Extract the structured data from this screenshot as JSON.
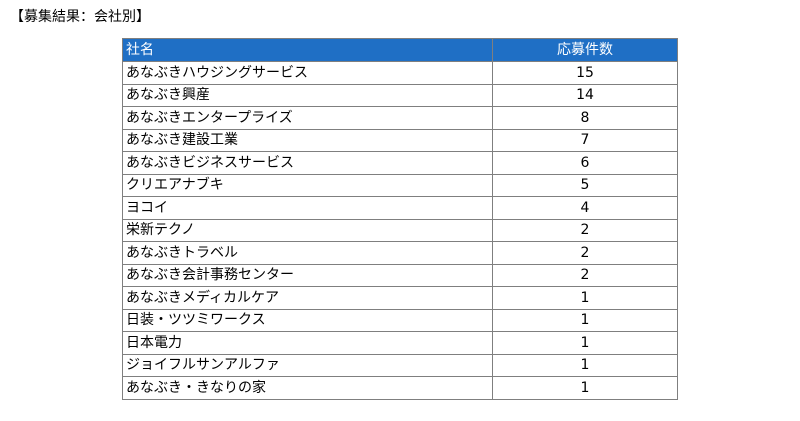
{
  "heading": "【募集結果：会社別】",
  "table": {
    "headers": {
      "name": "社名",
      "count": "応募件数"
    },
    "rows": [
      {
        "name": "あなぶきハウジングサービス",
        "count": "15"
      },
      {
        "name": "あなぶき興産",
        "count": "14"
      },
      {
        "name": "あなぶきエンタープライズ",
        "count": "8"
      },
      {
        "name": "あなぶき建設工業",
        "count": "7"
      },
      {
        "name": "あなぶきビジネスサービス",
        "count": "6"
      },
      {
        "name": "クリエアナブキ",
        "count": "5"
      },
      {
        "name": "ヨコイ",
        "count": "4"
      },
      {
        "name": "栄新テクノ",
        "count": "2"
      },
      {
        "name": "あなぶきトラベル",
        "count": "2"
      },
      {
        "name": "あなぶき会計事務センター",
        "count": "2"
      },
      {
        "name": "あなぶきメディカルケア",
        "count": "1"
      },
      {
        "name": "日装・ツツミワークス",
        "count": "1"
      },
      {
        "name": "日本電力",
        "count": "1"
      },
      {
        "name": "ジョイフルサンアルファ",
        "count": "1"
      },
      {
        "name": "あなぶき・きなりの家",
        "count": "1"
      }
    ]
  },
  "colors": {
    "header_background": "#1f6fc5",
    "header_text": "#ffffff",
    "border": "#7f7f7f"
  }
}
